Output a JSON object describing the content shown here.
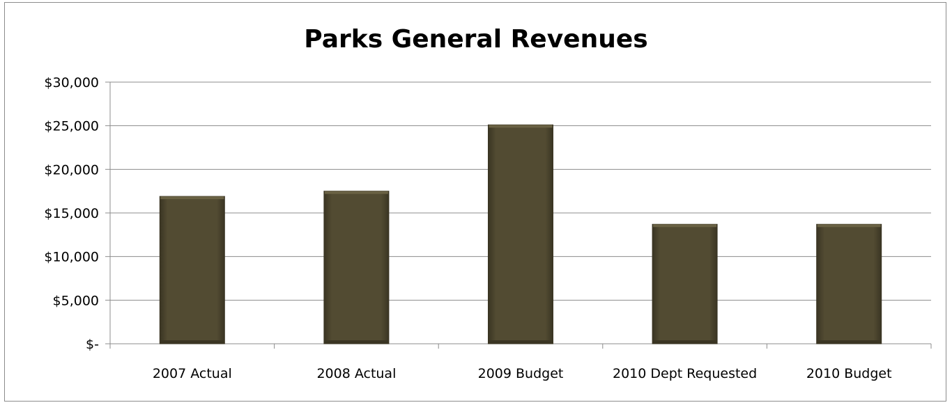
{
  "chart_data": {
    "type": "bar",
    "title": "Parks General Revenues",
    "xlabel": "",
    "ylabel": "",
    "categories": [
      "2007 Actual",
      "2008 Actual",
      "2009 Budget",
      "2010 Dept Requested",
      "2010 Budget"
    ],
    "values": [
      16900,
      17500,
      25100,
      13700,
      13700
    ],
    "ylim": [
      0,
      30000
    ],
    "yticks": [
      0,
      5000,
      10000,
      15000,
      20000,
      25000,
      30000
    ],
    "ytick_labels": [
      "$-",
      "$5,000",
      "$10,000",
      "$15,000",
      "$20,000",
      "$25,000",
      "$30,000"
    ],
    "grid": true,
    "legend": "none",
    "colors": {
      "bar": "#524b32",
      "bar_dark": "#3a3523",
      "bar_light": "#6a6244",
      "grid": "#8c8c8c"
    }
  }
}
